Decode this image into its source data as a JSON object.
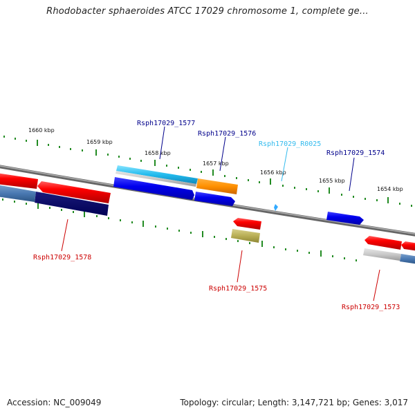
{
  "title": "Rhodobacter sphaeroides ATCC 17029 chromosome 1, complete ge...",
  "footer": {
    "accession": "Accession: NC_009049",
    "summary": "Topology: circular; Length: 3,147,721 bp; Genes: 3,017"
  },
  "scale_labels": [
    "1660 kbp",
    "1659 kbp",
    "1658 kbp",
    "1657 kbp",
    "1656 kbp",
    "1655 kbp",
    "1654 kbp"
  ],
  "colors": {
    "top_label_color": "#00008b",
    "bottom_label_color": "#cc0000",
    "rna_label_color": "#33bbee",
    "tick_color": "#228b22"
  },
  "gene_labels": [
    {
      "text": "Rsph17029_1577",
      "color": "#00008b"
    },
    {
      "text": "Rsph17029_1576",
      "color": "#00008b"
    },
    {
      "text": "Rsph17029_R0025",
      "color": "#33bbee"
    },
    {
      "text": "Rsph17029_1574",
      "color": "#00008b"
    },
    {
      "text": "Rsph17029_1578",
      "color": "#cc0000"
    },
    {
      "text": "Rsph17029_1575",
      "color": "#cc0000"
    },
    {
      "text": "Rsph17029_1573",
      "color": "#cc0000"
    }
  ]
}
